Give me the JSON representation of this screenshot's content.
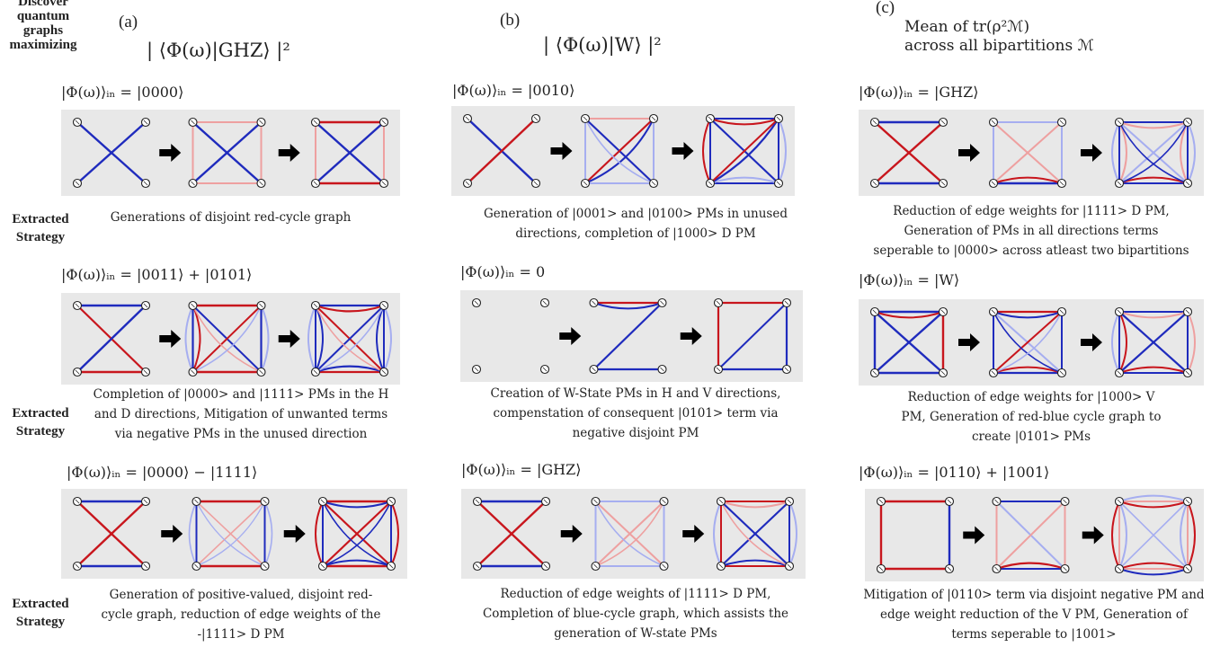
{
  "side_header": [
    "Discover",
    "quantum",
    "graphs",
    "maximizing"
  ],
  "extracted_label": [
    "Extracted",
    "Strategy"
  ],
  "columns": [
    {
      "letter": "(a)",
      "title": "| ⟨Φ(ω)|GHZ⟩ |²",
      "rows": [
        {
          "state": "|Φ(ω)⟩ᵢₙ = |0000⟩",
          "caption": [
            "Generations of disjoint red-cycle graph"
          ]
        },
        {
          "state": "|Φ(ω)⟩ᵢₙ = |0011⟩ + |0101⟩",
          "caption": [
            "Completion of |0000> and |1111> PMs in the H",
            "and D directions, Mitigation of unwanted terms",
            "via negative PMs in the unused direction"
          ]
        },
        {
          "state": "|Φ(ω)⟩ᵢₙ = |0000⟩ − |1111⟩",
          "caption": [
            "Generation of positive-valued, disjoint red-",
            "cycle graph, reduction of edge weights of the",
            "-|1111> D PM"
          ]
        }
      ]
    },
    {
      "letter": "(b)",
      "title": "| ⟨Φ(ω)|W⟩ |²",
      "rows": [
        {
          "state": "|Φ(ω)⟩ᵢₙ = |0010⟩",
          "caption": [
            "Generation of |0001> and |0100> PMs in unused",
            "directions, completion of |1000> D PM"
          ]
        },
        {
          "state": "|Φ(ω)⟩ᵢₙ = 0",
          "caption": [
            "Creation of W-State PMs in H and V directions,",
            "compenstation of consequent |0101> term via",
            "negative disjoint PM"
          ]
        },
        {
          "state": "|Φ(ω)⟩ᵢₙ = |GHZ⟩",
          "caption": [
            "Reduction of edge weights of |1111> D PM,",
            "Completion of blue-cycle graph, which assists the",
            "generation of W-state PMs"
          ]
        }
      ]
    },
    {
      "letter": "(c)",
      "title": [
        "Mean of tr(ρ²ℳ)",
        "across all bipartitions ℳ"
      ],
      "rows": [
        {
          "state": "|Φ(ω)⟩ᵢₙ = |GHZ⟩",
          "caption": [
            "Reduction of edge weights for |1111> D  PM,",
            "Generation of PMs in all directions terms",
            "seperable to |0000> across atleast two bipartitions"
          ]
        },
        {
          "state": "|Φ(ω)⟩ᵢₙ = |W⟩",
          "caption": [
            "Reduction of edge weights for   |1000> V",
            "PM,  Generation of red-blue cycle graph to",
            "create |0101> PMs"
          ]
        },
        {
          "state": "|Φ(ω)⟩ᵢₙ = |0110⟩ + |1001⟩",
          "caption": [
            "Mitigation of |0110> term via disjoint negative PM and",
            "edge weight reduction of the V PM, Generation of",
            "terms seperable to |1001>"
          ]
        }
      ]
    }
  ],
  "colors": {
    "red": "#c8161d",
    "blue": "#1f2bbd",
    "lightred": "#eea0a0",
    "lightblue": "#a6aef0",
    "panel": "#e8e8e8"
  },
  "icons": {
    "arrow": "right-arrow-icon",
    "vertex": "vertex-node-icon"
  }
}
